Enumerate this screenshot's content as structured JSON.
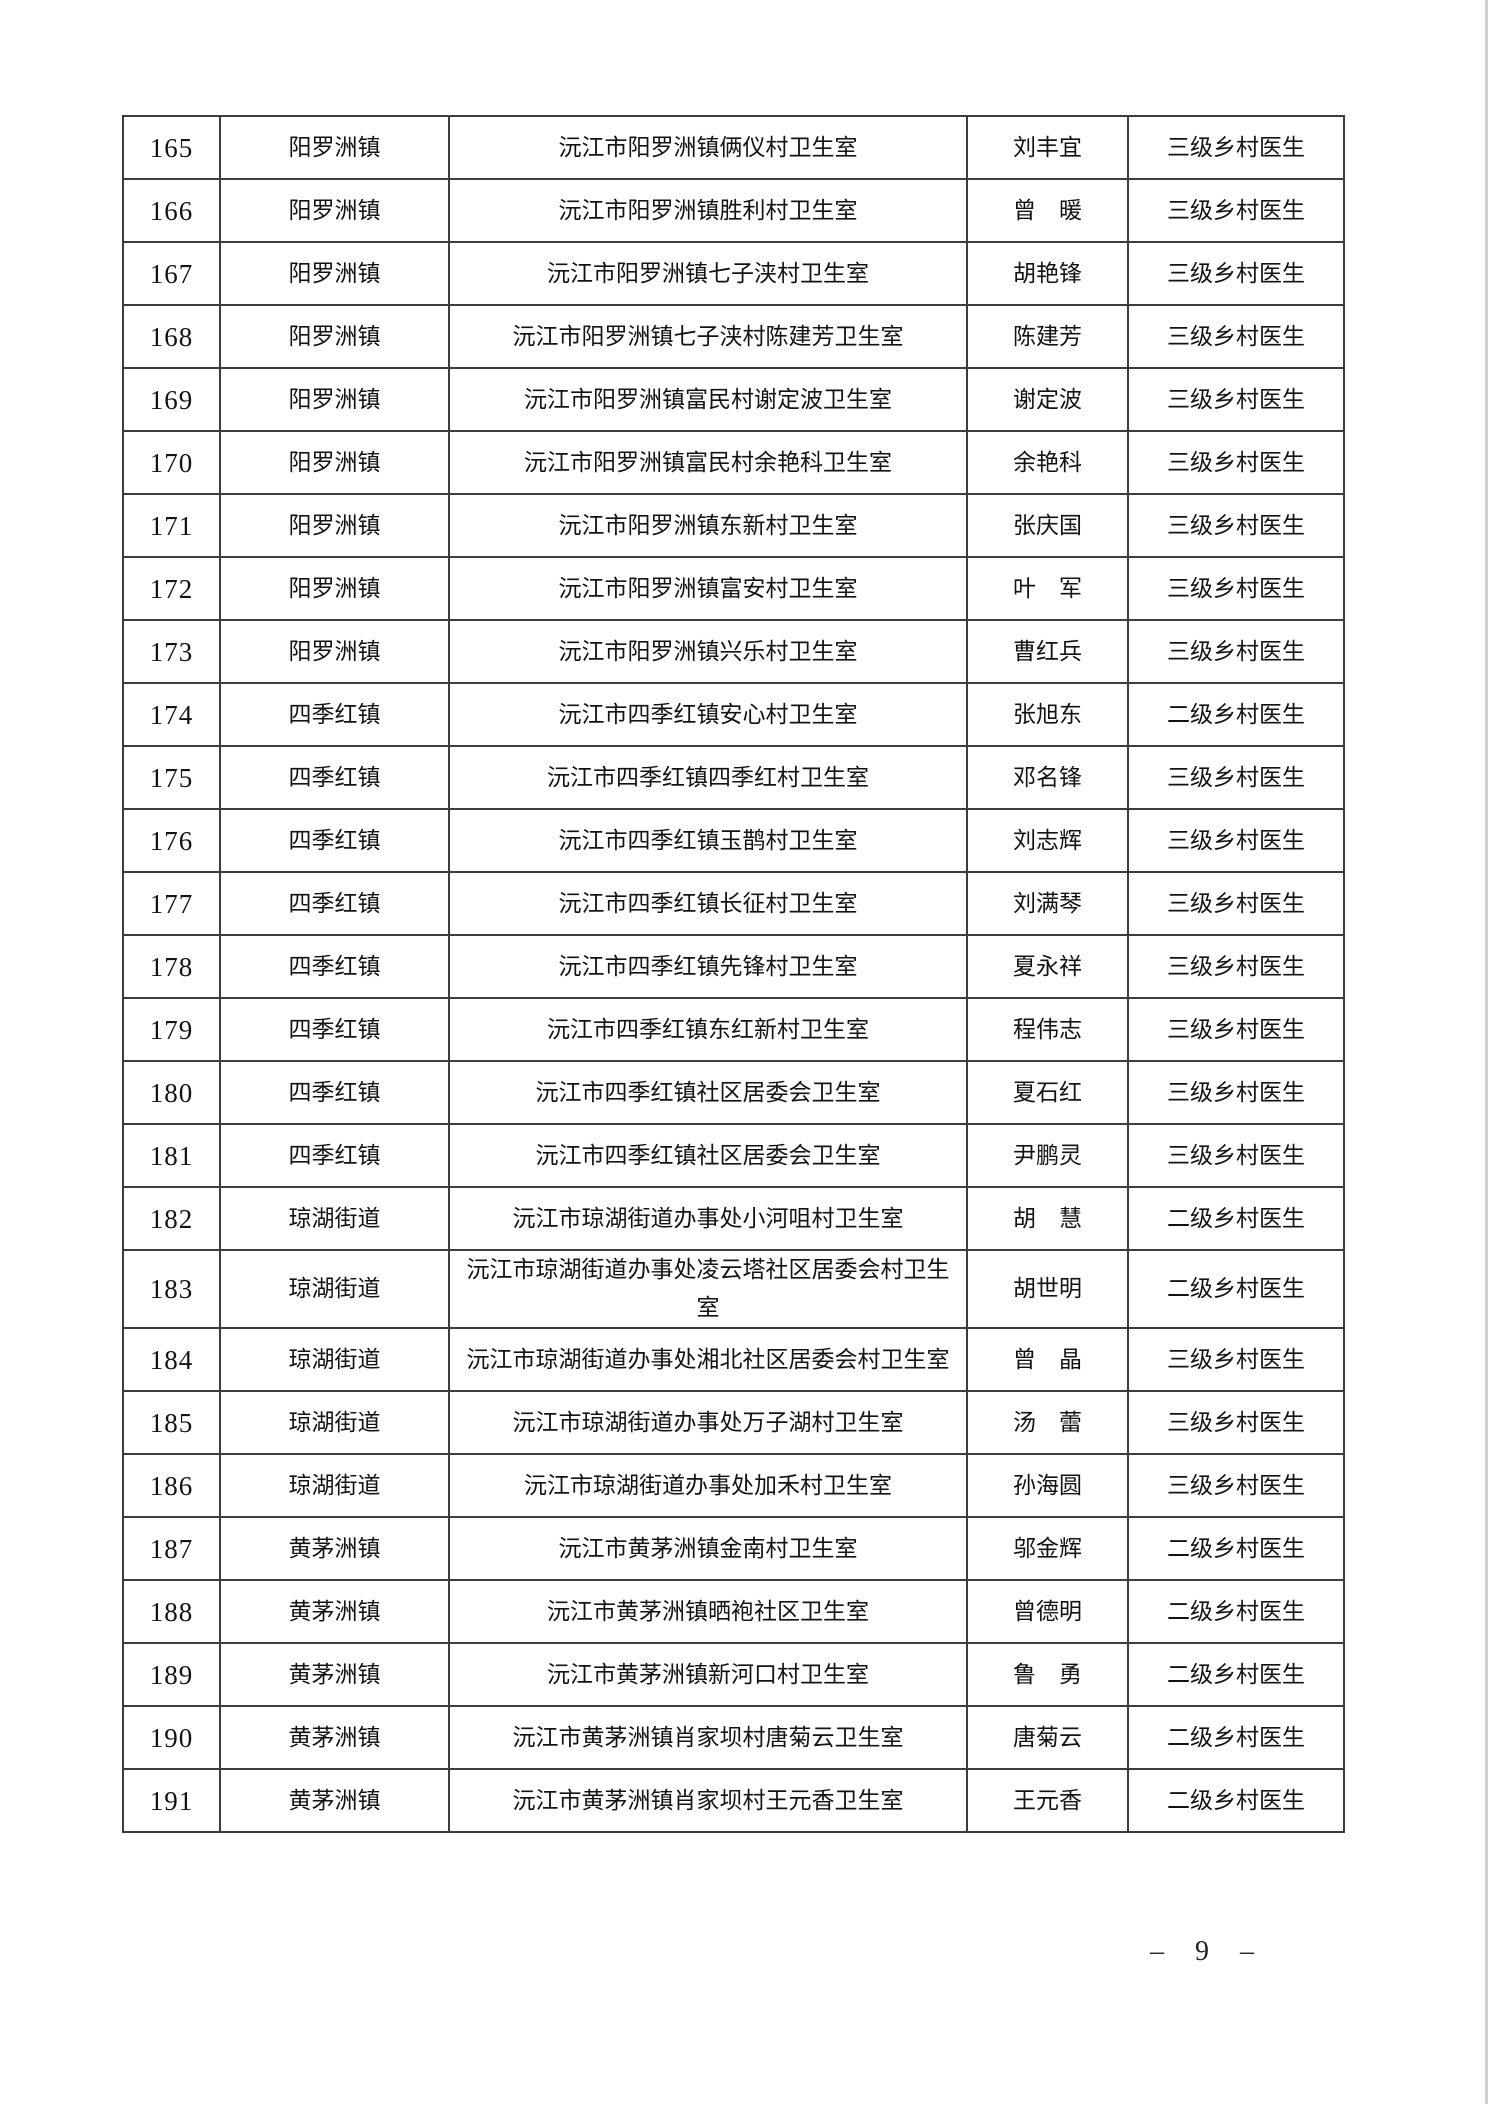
{
  "page": {
    "page_number": "– 9 –"
  },
  "table": {
    "rows": [
      {
        "no": "165",
        "town": "阳罗洲镇",
        "clinic": "沅江市阳罗洲镇俩仪村卫生室",
        "doctor": "刘丰宜",
        "level": "三级乡村医生"
      },
      {
        "no": "166",
        "town": "阳罗洲镇",
        "clinic": "沅江市阳罗洲镇胜利村卫生室",
        "doctor": "曾　暖",
        "level": "三级乡村医生"
      },
      {
        "no": "167",
        "town": "阳罗洲镇",
        "clinic": "沅江市阳罗洲镇七子浃村卫生室",
        "doctor": "胡艳锋",
        "level": "三级乡村医生"
      },
      {
        "no": "168",
        "town": "阳罗洲镇",
        "clinic": "沅江市阳罗洲镇七子浃村陈建芳卫生室",
        "doctor": "陈建芳",
        "level": "三级乡村医生"
      },
      {
        "no": "169",
        "town": "阳罗洲镇",
        "clinic": "沅江市阳罗洲镇富民村谢定波卫生室",
        "doctor": "谢定波",
        "level": "三级乡村医生"
      },
      {
        "no": "170",
        "town": "阳罗洲镇",
        "clinic": "沅江市阳罗洲镇富民村余艳科卫生室",
        "doctor": "余艳科",
        "level": "三级乡村医生"
      },
      {
        "no": "171",
        "town": "阳罗洲镇",
        "clinic": "沅江市阳罗洲镇东新村卫生室",
        "doctor": "张庆国",
        "level": "三级乡村医生"
      },
      {
        "no": "172",
        "town": "阳罗洲镇",
        "clinic": "沅江市阳罗洲镇富安村卫生室",
        "doctor": "叶　军",
        "level": "三级乡村医生"
      },
      {
        "no": "173",
        "town": "阳罗洲镇",
        "clinic": "沅江市阳罗洲镇兴乐村卫生室",
        "doctor": "曹红兵",
        "level": "三级乡村医生"
      },
      {
        "no": "174",
        "town": "四季红镇",
        "clinic": "沅江市四季红镇安心村卫生室",
        "doctor": "张旭东",
        "level": "二级乡村医生"
      },
      {
        "no": "175",
        "town": "四季红镇",
        "clinic": "沅江市四季红镇四季红村卫生室",
        "doctor": "邓名锋",
        "level": "三级乡村医生"
      },
      {
        "no": "176",
        "town": "四季红镇",
        "clinic": "沅江市四季红镇玉鹊村卫生室",
        "doctor": "刘志辉",
        "level": "三级乡村医生"
      },
      {
        "no": "177",
        "town": "四季红镇",
        "clinic": "沅江市四季红镇长征村卫生室",
        "doctor": "刘满琴",
        "level": "三级乡村医生"
      },
      {
        "no": "178",
        "town": "四季红镇",
        "clinic": "沅江市四季红镇先锋村卫生室",
        "doctor": "夏永祥",
        "level": "三级乡村医生"
      },
      {
        "no": "179",
        "town": "四季红镇",
        "clinic": "沅江市四季红镇东红新村卫生室",
        "doctor": "程伟志",
        "level": "三级乡村医生"
      },
      {
        "no": "180",
        "town": "四季红镇",
        "clinic": "沅江市四季红镇社区居委会卫生室",
        "doctor": "夏石红",
        "level": "三级乡村医生"
      },
      {
        "no": "181",
        "town": "四季红镇",
        "clinic": "沅江市四季红镇社区居委会卫生室",
        "doctor": "尹鹏灵",
        "level": "三级乡村医生"
      },
      {
        "no": "182",
        "town": "琼湖街道",
        "clinic": "沅江市琼湖街道办事处小河咀村卫生室",
        "doctor": "胡　慧",
        "level": "二级乡村医生"
      },
      {
        "no": "183",
        "town": "琼湖街道",
        "clinic": "沅江市琼湖街道办事处凌云塔社区居委会村卫生室",
        "doctor": "胡世明",
        "level": "二级乡村医生"
      },
      {
        "no": "184",
        "town": "琼湖街道",
        "clinic": "沅江市琼湖街道办事处湘北社区居委会村卫生室",
        "doctor": "曾　晶",
        "level": "三级乡村医生"
      },
      {
        "no": "185",
        "town": "琼湖街道",
        "clinic": "沅江市琼湖街道办事处万子湖村卫生室",
        "doctor": "汤　蕾",
        "level": "三级乡村医生"
      },
      {
        "no": "186",
        "town": "琼湖街道",
        "clinic": "沅江市琼湖街道办事处加禾村卫生室",
        "doctor": "孙海圆",
        "level": "三级乡村医生"
      },
      {
        "no": "187",
        "town": "黄茅洲镇",
        "clinic": "沅江市黄茅洲镇金南村卫生室",
        "doctor": "邬金辉",
        "level": "二级乡村医生"
      },
      {
        "no": "188",
        "town": "黄茅洲镇",
        "clinic": "沅江市黄茅洲镇晒袍社区卫生室",
        "doctor": "曾德明",
        "level": "二级乡村医生"
      },
      {
        "no": "189",
        "town": "黄茅洲镇",
        "clinic": "沅江市黄茅洲镇新河口村卫生室",
        "doctor": "鲁　勇",
        "level": "二级乡村医生"
      },
      {
        "no": "190",
        "town": "黄茅洲镇",
        "clinic": "沅江市黄茅洲镇肖家坝村唐菊云卫生室",
        "doctor": "唐菊云",
        "level": "二级乡村医生"
      },
      {
        "no": "191",
        "town": "黄茅洲镇",
        "clinic": "沅江市黄茅洲镇肖家坝村王元香卫生室",
        "doctor": "王元香",
        "level": "二级乡村医生"
      }
    ]
  }
}
